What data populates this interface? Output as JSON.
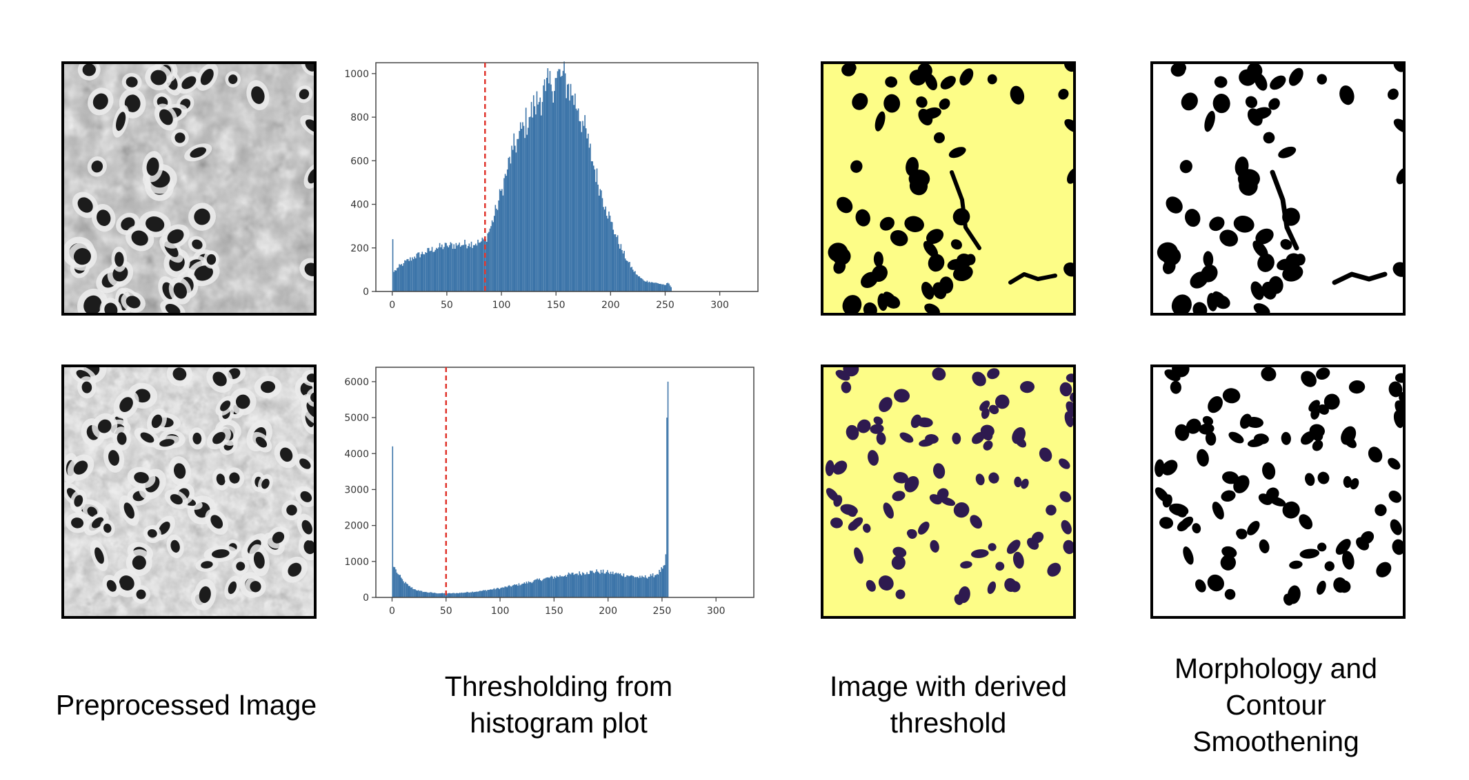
{
  "colors": {
    "histogram_fill": "#3a73a8",
    "threshold_line": "#e0332b",
    "mask_background": "#fdfd87",
    "mask_foreground_row1": "#000000",
    "mask_foreground_row2": "#2e1a4f",
    "cell_dark": "#1c1c1c",
    "tissue_gray": "#a9a9a9"
  },
  "panels": [
    {
      "id": "preprocessed",
      "caption_lines": [
        "Preprocessed Image"
      ]
    },
    {
      "id": "histogram",
      "caption_lines": [
        "Thresholding from",
        "histogram plot"
      ]
    },
    {
      "id": "threshold_mask",
      "caption_lines": [
        "Image with derived",
        "threshold"
      ]
    },
    {
      "id": "morphology",
      "caption_lines": [
        "Morphology and",
        "Contour",
        "Smoothening"
      ]
    }
  ],
  "chart_data": [
    {
      "type": "bar",
      "title": "",
      "xlabel": "",
      "ylabel": "",
      "xlim": [
        -15,
        335
      ],
      "ylim": [
        0,
        1050
      ],
      "xticks": [
        0,
        50,
        100,
        150,
        200,
        250,
        300
      ],
      "yticks": [
        0,
        200,
        400,
        600,
        800,
        1000
      ],
      "threshold": 85,
      "series": [
        {
          "x": [
            0,
            1,
            5,
            10,
            20,
            30,
            40,
            50,
            60,
            70,
            80,
            85,
            90,
            95,
            100,
            105,
            110,
            115,
            120,
            125,
            130,
            135,
            140,
            145,
            150,
            155,
            160,
            165,
            170,
            175,
            180,
            185,
            190,
            195,
            200,
            205,
            210,
            215,
            220,
            225,
            230,
            235,
            240,
            245,
            250,
            252,
            255
          ],
          "values": [
            240,
            90,
            110,
            130,
            160,
            180,
            200,
            210,
            215,
            220,
            225,
            240,
            300,
            380,
            470,
            560,
            650,
            700,
            760,
            800,
            850,
            890,
            920,
            950,
            980,
            990,
            950,
            900,
            840,
            760,
            660,
            560,
            470,
            390,
            320,
            250,
            190,
            140,
            100,
            70,
            50,
            45,
            40,
            35,
            30,
            40,
            20
          ]
        }
      ]
    },
    {
      "type": "bar",
      "title": "",
      "xlabel": "",
      "ylabel": "",
      "xlim": [
        -15,
        335
      ],
      "ylim": [
        0,
        6400
      ],
      "xticks": [
        0,
        50,
        100,
        150,
        200,
        250,
        300
      ],
      "yticks": [
        0,
        1000,
        2000,
        3000,
        4000,
        5000,
        6000
      ],
      "threshold": 50,
      "series": [
        {
          "x": [
            0,
            1,
            3,
            5,
            10,
            15,
            20,
            25,
            30,
            40,
            50,
            60,
            80,
            100,
            120,
            140,
            160,
            170,
            180,
            190,
            200,
            210,
            220,
            230,
            240,
            245,
            250,
            252,
            253,
            254,
            255
          ],
          "values": [
            4200,
            850,
            780,
            650,
            450,
            320,
            230,
            180,
            150,
            120,
            110,
            120,
            170,
            260,
            380,
            520,
            620,
            660,
            700,
            720,
            690,
            650,
            600,
            550,
            600,
            650,
            800,
            900,
            1200,
            5000,
            6000
          ]
        }
      ]
    }
  ]
}
